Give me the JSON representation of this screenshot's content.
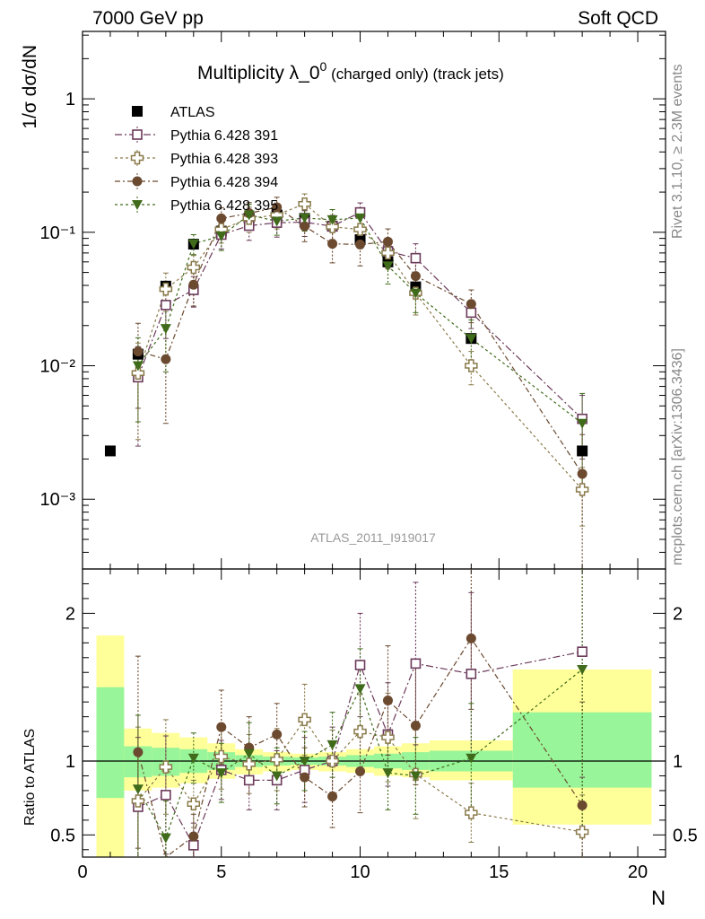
{
  "header": {
    "left": "7000 GeV pp",
    "right": "Soft QCD"
  },
  "side_labels": {
    "rivet": "Rivet 3.1.10, ≥ 2.3M events",
    "mcplots": "mcplots.cern.ch [arXiv:1306.3436]"
  },
  "watermark": "ATLAS_2011_I919017",
  "chart_data": [
    {
      "type": "scatter",
      "panel": "main",
      "title": "Multiplicity λ_0",
      "title_sup": "0",
      "title_suffix": "(charged only) (track jets)",
      "ylabel": "1/σ dσ/dN",
      "yscale": "log",
      "ylim": [
        0.0003,
        3.2
      ],
      "xlim": [
        0,
        21
      ],
      "y_ticklabels": [
        "1",
        "10⁻¹",
        "10⁻²",
        "10⁻³"
      ],
      "legend_position": "top-left",
      "series": [
        {
          "name": "ATLAS",
          "marker": "filled-square",
          "color": "#000000",
          "x": [
            1,
            2,
            3,
            4,
            5,
            6,
            7,
            8,
            9,
            10,
            11,
            12,
            14,
            18
          ],
          "y": [
            0.0023,
            0.0122,
            0.0395,
            0.0815,
            0.102,
            0.128,
            0.135,
            0.127,
            0.111,
            0.088,
            0.06,
            0.039,
            0.016,
            0.0023
          ]
        },
        {
          "name": "Pythia 6.428 391",
          "marker": "open-square",
          "color": "#6b3a5a",
          "dash": "8,3,2,3",
          "x": [
            2,
            3,
            4,
            5,
            6,
            7,
            8,
            9,
            10,
            11,
            12,
            14,
            18
          ],
          "y": [
            0.0082,
            0.0285,
            0.037,
            0.096,
            0.112,
            0.118,
            0.119,
            0.111,
            0.141,
            0.072,
            0.064,
            0.025,
            0.004
          ],
          "err": [
            0.0057,
            0.0125,
            0.0095,
            0.021,
            0.025,
            0.026,
            0.026,
            0.023,
            0.025,
            0.018,
            0.018,
            0.006,
            0.002
          ]
        },
        {
          "name": "Pythia 6.428 393",
          "marker": "open-cross",
          "color": "#8a7a4a",
          "dash": "3,3",
          "x": [
            2,
            3,
            4,
            5,
            6,
            7,
            8,
            9,
            10,
            11,
            12,
            14,
            18
          ],
          "y": [
            0.0088,
            0.0375,
            0.0545,
            0.105,
            0.127,
            0.135,
            0.163,
            0.11,
            0.105,
            0.07,
            0.035,
            0.01,
            0.00118
          ],
          "err": [
            0.006,
            0.012,
            0.0125,
            0.022,
            0.027,
            0.029,
            0.031,
            0.023,
            0.022,
            0.017,
            0.011,
            0.0028,
            0.00055
          ]
        },
        {
          "name": "Pythia 6.428 394",
          "marker": "filled-circle",
          "color": "#6b4a30",
          "dash": "6,3,2,3",
          "x": [
            2,
            3,
            4,
            5,
            6,
            7,
            8,
            9,
            10,
            11,
            12,
            14,
            18
          ],
          "y": [
            0.0128,
            0.0112,
            0.0405,
            0.127,
            0.139,
            0.154,
            0.111,
            0.082,
            0.081,
            0.085,
            0.047,
            0.029,
            0.00155
          ],
          "err": [
            0.008,
            0.0075,
            0.0125,
            0.026,
            0.028,
            0.029,
            0.026,
            0.023,
            0.025,
            0.021,
            0.014,
            0.008,
            0.0015
          ]
        },
        {
          "name": "Pythia 6.428 395",
          "marker": "filled-triangle-down",
          "color": "#3f6b1a",
          "dash": "3,3",
          "x": [
            2,
            3,
            4,
            5,
            6,
            7,
            8,
            9,
            10,
            11,
            12,
            14,
            18
          ],
          "y": [
            0.01,
            0.019,
            0.082,
            0.094,
            0.135,
            0.121,
            0.128,
            0.124,
            0.128,
            0.056,
            0.035,
            0.016,
            0.0037
          ],
          "err": [
            0.0062,
            0.01,
            0.014,
            0.021,
            0.027,
            0.026,
            0.026,
            0.024,
            0.023,
            0.015,
            0.01,
            0.006,
            0.0025
          ]
        }
      ]
    },
    {
      "type": "scatter",
      "panel": "ratio",
      "ylabel": "Ratio to ATLAS",
      "xlabel": "N",
      "ylim": [
        0.35,
        2.3
      ],
      "xlim": [
        0,
        21
      ],
      "x_ticklabels": [
        "0",
        "5",
        "10",
        "15",
        "20"
      ],
      "y_ticklabels": [
        "0.5",
        "1",
        "2"
      ],
      "bands": {
        "x_edges": [
          0.5,
          1.5,
          2.5,
          3.5,
          4.5,
          5.5,
          6.5,
          7.5,
          8.5,
          9.5,
          10.5,
          11.5,
          12.5,
          15.5,
          20.5
        ],
        "yellow_lo": [
          0.35,
          0.8,
          0.82,
          0.85,
          0.88,
          0.91,
          0.93,
          0.94,
          0.93,
          0.92,
          0.9,
          0.89,
          0.87,
          0.57
        ],
        "yellow_hi": [
          1.85,
          1.22,
          1.19,
          1.16,
          1.12,
          1.08,
          1.06,
          1.05,
          1.06,
          1.08,
          1.1,
          1.12,
          1.14,
          1.62
        ],
        "green_lo": [
          0.75,
          0.89,
          0.9,
          0.92,
          0.94,
          0.96,
          0.97,
          0.975,
          0.97,
          0.96,
          0.95,
          0.94,
          0.93,
          0.82
        ],
        "green_hi": [
          1.5,
          1.1,
          1.09,
          1.08,
          1.06,
          1.04,
          1.03,
          1.025,
          1.03,
          1.04,
          1.05,
          1.06,
          1.07,
          1.33
        ]
      },
      "series": [
        {
          "name": "Pythia 6.428 391",
          "x": [
            2,
            3,
            4,
            5,
            6,
            7,
            8,
            9,
            10,
            11,
            12,
            14,
            18
          ],
          "y": [
            0.69,
            0.77,
            0.43,
            0.94,
            0.87,
            0.87,
            0.94,
            1.0,
            1.65,
            1.18,
            1.66,
            1.59,
            1.74
          ],
          "err": [
            0.47,
            0.4,
            0.15,
            0.2,
            0.2,
            0.2,
            0.22,
            0.23,
            0.35,
            0.35,
            0.55,
            0.55,
            0.85
          ]
        },
        {
          "name": "Pythia 6.428 393",
          "x": [
            2,
            3,
            4,
            5,
            6,
            7,
            8,
            9,
            10,
            11,
            12,
            14,
            18
          ],
          "y": [
            0.73,
            0.96,
            0.71,
            1.03,
            0.98,
            1.01,
            1.28,
            1.0,
            1.2,
            1.16,
            0.91,
            0.65,
            0.52
          ],
          "err": [
            0.5,
            0.32,
            0.16,
            0.22,
            0.2,
            0.21,
            0.24,
            0.21,
            0.25,
            0.3,
            0.3,
            0.2,
            0.25
          ]
        },
        {
          "name": "Pythia 6.428 394",
          "x": [
            2,
            3,
            4,
            5,
            6,
            7,
            8,
            9,
            10,
            11,
            12,
            14,
            18
          ],
          "y": [
            1.06,
            0.29,
            0.49,
            1.23,
            1.09,
            1.18,
            0.89,
            0.76,
            0.93,
            1.41,
            1.24,
            1.83,
            0.7
          ],
          "err": [
            0.65,
            0.2,
            0.15,
            0.25,
            0.21,
            0.21,
            0.2,
            0.21,
            0.28,
            0.37,
            0.4,
            0.48,
            0.7
          ]
        },
        {
          "name": "Pythia 6.428 395",
          "x": [
            2,
            3,
            4,
            5,
            6,
            7,
            8,
            9,
            10,
            11,
            12,
            14,
            18
          ],
          "y": [
            0.81,
            0.48,
            1.02,
            0.92,
            1.05,
            0.9,
            1.0,
            1.11,
            1.49,
            0.92,
            0.9,
            1.02,
            1.62
          ],
          "err": [
            0.5,
            0.25,
            0.17,
            0.2,
            0.21,
            0.19,
            0.2,
            0.22,
            0.27,
            0.25,
            0.26,
            0.37,
            1.1
          ]
        }
      ]
    }
  ]
}
